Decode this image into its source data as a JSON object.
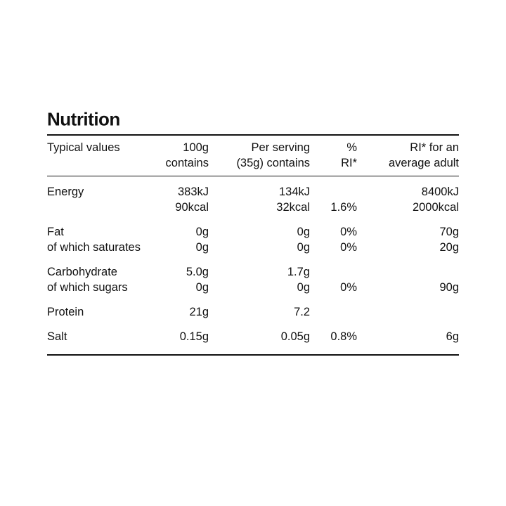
{
  "title": "Nutrition",
  "table": {
    "header": [
      [
        "Typical values"
      ],
      [
        "100g",
        "contains"
      ],
      [
        "Per serving",
        "(35g) contains"
      ],
      [
        "%",
        "RI*"
      ],
      [
        "RI* for an",
        "average adult"
      ]
    ],
    "groups": [
      [
        [
          "Energy",
          "383kJ",
          "134kJ",
          null,
          "8400kJ"
        ],
        [
          null,
          "90kcal",
          "32kcal",
          "1.6%",
          "2000kcal"
        ]
      ],
      [
        [
          "Fat",
          "0g",
          "0g",
          "0%",
          "70g"
        ],
        [
          "of which saturates",
          "0g",
          "0g",
          "0%",
          "20g"
        ]
      ],
      [
        [
          "Carbohydrate",
          "5.0g",
          "1.7g",
          null,
          null
        ],
        [
          "of which sugars",
          "0g",
          "0g",
          "0%",
          "90g"
        ]
      ],
      [
        [
          "Protein",
          "21g",
          "7.2",
          null,
          null
        ]
      ],
      [
        [
          "Salt",
          "0.15g",
          "0.05g",
          "0.8%",
          "6g"
        ]
      ]
    ]
  }
}
